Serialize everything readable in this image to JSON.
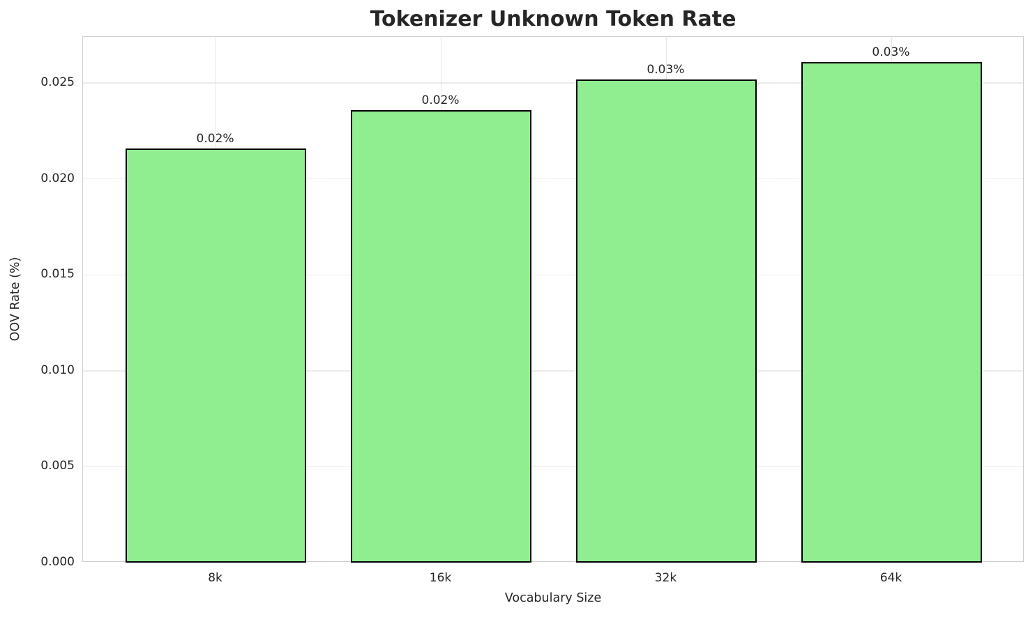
{
  "chart_data": {
    "type": "bar",
    "title": "Tokenizer Unknown Token Rate",
    "xlabel": "Vocabulary Size",
    "ylabel": "OOV Rate (%)",
    "categories": [
      "8k",
      "16k",
      "32k",
      "64k"
    ],
    "values": [
      0.0216,
      0.0236,
      0.0252,
      0.0261
    ],
    "bar_labels": [
      "0.02%",
      "0.02%",
      "0.03%",
      "0.03%"
    ],
    "ylim": [
      0,
      0.0274
    ],
    "ytick_labels": [
      "0.000",
      "0.005",
      "0.010",
      "0.015",
      "0.020",
      "0.025"
    ],
    "yticks": [
      0.0,
      0.005,
      0.01,
      0.015,
      0.02,
      0.025
    ],
    "grid": true,
    "legend_position": "none",
    "bar_color": "#90EE90",
    "bar_edge_color": "#000000"
  },
  "colors": {
    "background": "#ffffff",
    "grid_h": "#ececec",
    "grid_v": "#e6e6e6",
    "spine": "#cfcfcf",
    "text": "#262626"
  }
}
